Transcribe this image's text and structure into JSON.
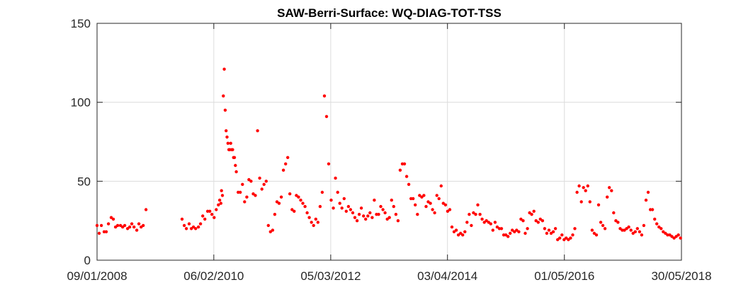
{
  "chart_data": {
    "type": "scatter",
    "title": "SAW-Berri-Surface: WQ-DIAG-TOT-TSS",
    "xlabel": "",
    "ylabel": "",
    "xlim": [
      0,
      3794
    ],
    "ylim": [
      0,
      150
    ],
    "grid": true,
    "marker_color": "#ff0000",
    "x_unit": "days since 09/01/2008",
    "x_ticks": [
      {
        "label": "09/01/2008",
        "value": 0
      },
      {
        "label": "06/02/2010",
        "value": 758
      },
      {
        "label": "05/03/2012",
        "value": 1517
      },
      {
        "label": "03/04/2014",
        "value": 2275
      },
      {
        "label": "01/05/2016",
        "value": 3034
      },
      {
        "label": "30/05/2018",
        "value": 3794
      }
    ],
    "y_ticks": [
      {
        "label": "0",
        "value": 0
      },
      {
        "label": "50",
        "value": 50
      },
      {
        "label": "100",
        "value": 100
      },
      {
        "label": "150",
        "value": 150
      }
    ],
    "series": [
      {
        "name": "WQ-DIAG-TOT-TSS",
        "points": [
          [
            0,
            22
          ],
          [
            14,
            17
          ],
          [
            28,
            22
          ],
          [
            46,
            18
          ],
          [
            60,
            18
          ],
          [
            74,
            23
          ],
          [
            92,
            27
          ],
          [
            106,
            26
          ],
          [
            120,
            21
          ],
          [
            134,
            22
          ],
          [
            152,
            22
          ],
          [
            166,
            21
          ],
          [
            180,
            22
          ],
          [
            198,
            20
          ],
          [
            212,
            21
          ],
          [
            226,
            23
          ],
          [
            240,
            21
          ],
          [
            258,
            19
          ],
          [
            272,
            23
          ],
          [
            286,
            21
          ],
          [
            300,
            22
          ],
          [
            318,
            32
          ],
          [
            552,
            26
          ],
          [
            566,
            22
          ],
          [
            580,
            20
          ],
          [
            598,
            23
          ],
          [
            612,
            20
          ],
          [
            626,
            21
          ],
          [
            640,
            20
          ],
          [
            658,
            21
          ],
          [
            672,
            23
          ],
          [
            686,
            28
          ],
          [
            700,
            26
          ],
          [
            718,
            31
          ],
          [
            732,
            31
          ],
          [
            746,
            29
          ],
          [
            760,
            27
          ],
          [
            774,
            32
          ],
          [
            788,
            35
          ],
          [
            796,
            38
          ],
          [
            804,
            36
          ],
          [
            808,
            44
          ],
          [
            814,
            41
          ],
          [
            820,
            104
          ],
          [
            826,
            121
          ],
          [
            832,
            95
          ],
          [
            838,
            82
          ],
          [
            844,
            78
          ],
          [
            850,
            74
          ],
          [
            856,
            70
          ],
          [
            862,
            70
          ],
          [
            868,
            74
          ],
          [
            874,
            70
          ],
          [
            880,
            70
          ],
          [
            886,
            65
          ],
          [
            892,
            65
          ],
          [
            898,
            60
          ],
          [
            904,
            56
          ],
          [
            916,
            43
          ],
          [
            930,
            43
          ],
          [
            944,
            48
          ],
          [
            958,
            37
          ],
          [
            972,
            40
          ],
          [
            986,
            51
          ],
          [
            1000,
            50
          ],
          [
            1014,
            42
          ],
          [
            1028,
            41
          ],
          [
            1042,
            82
          ],
          [
            1056,
            52
          ],
          [
            1070,
            45
          ],
          [
            1084,
            48
          ],
          [
            1098,
            50
          ],
          [
            1112,
            22
          ],
          [
            1126,
            18
          ],
          [
            1140,
            19
          ],
          [
            1154,
            29
          ],
          [
            1168,
            37
          ],
          [
            1182,
            36
          ],
          [
            1196,
            40
          ],
          [
            1210,
            57
          ],
          [
            1224,
            61
          ],
          [
            1238,
            65
          ],
          [
            1252,
            42
          ],
          [
            1266,
            32
          ],
          [
            1280,
            31
          ],
          [
            1294,
            41
          ],
          [
            1308,
            40
          ],
          [
            1322,
            38
          ],
          [
            1336,
            36
          ],
          [
            1350,
            34
          ],
          [
            1364,
            30
          ],
          [
            1378,
            27
          ],
          [
            1392,
            24
          ],
          [
            1406,
            22
          ],
          [
            1420,
            26
          ],
          [
            1434,
            24
          ],
          [
            1448,
            34
          ],
          [
            1462,
            43
          ],
          [
            1476,
            104
          ],
          [
            1490,
            91
          ],
          [
            1504,
            61
          ],
          [
            1520,
            38
          ],
          [
            1534,
            33
          ],
          [
            1548,
            52
          ],
          [
            1562,
            43
          ],
          [
            1576,
            36
          ],
          [
            1590,
            33
          ],
          [
            1604,
            39
          ],
          [
            1618,
            31
          ],
          [
            1632,
            34
          ],
          [
            1646,
            32
          ],
          [
            1660,
            30
          ],
          [
            1674,
            27
          ],
          [
            1688,
            25
          ],
          [
            1702,
            29
          ],
          [
            1716,
            33
          ],
          [
            1730,
            28
          ],
          [
            1744,
            26
          ],
          [
            1758,
            28
          ],
          [
            1772,
            30
          ],
          [
            1786,
            27
          ],
          [
            1800,
            38
          ],
          [
            1814,
            29
          ],
          [
            1828,
            29
          ],
          [
            1842,
            34
          ],
          [
            1856,
            32
          ],
          [
            1870,
            30
          ],
          [
            1884,
            26
          ],
          [
            1898,
            27
          ],
          [
            1912,
            38
          ],
          [
            1926,
            34
          ],
          [
            1940,
            29
          ],
          [
            1954,
            25
          ],
          [
            1968,
            57
          ],
          [
            1982,
            61
          ],
          [
            1996,
            61
          ],
          [
            2010,
            53
          ],
          [
            2024,
            48
          ],
          [
            2038,
            39
          ],
          [
            2052,
            39
          ],
          [
            2066,
            35
          ],
          [
            2080,
            29
          ],
          [
            2094,
            41
          ],
          [
            2108,
            40
          ],
          [
            2122,
            41
          ],
          [
            2136,
            34
          ],
          [
            2150,
            37
          ],
          [
            2164,
            36
          ],
          [
            2178,
            32
          ],
          [
            2192,
            30
          ],
          [
            2206,
            41
          ],
          [
            2220,
            39
          ],
          [
            2234,
            47
          ],
          [
            2248,
            36
          ],
          [
            2262,
            35
          ],
          [
            2276,
            31
          ],
          [
            2290,
            32
          ],
          [
            2304,
            21
          ],
          [
            2318,
            18
          ],
          [
            2332,
            19
          ],
          [
            2346,
            16
          ],
          [
            2360,
            17
          ],
          [
            2374,
            16
          ],
          [
            2388,
            18
          ],
          [
            2402,
            24
          ],
          [
            2416,
            29
          ],
          [
            2430,
            22
          ],
          [
            2444,
            30
          ],
          [
            2458,
            29
          ],
          [
            2472,
            35
          ],
          [
            2486,
            29
          ],
          [
            2500,
            26
          ],
          [
            2514,
            24
          ],
          [
            2528,
            25
          ],
          [
            2542,
            24
          ],
          [
            2556,
            23
          ],
          [
            2570,
            19
          ],
          [
            2584,
            24
          ],
          [
            2598,
            21
          ],
          [
            2612,
            20
          ],
          [
            2626,
            20
          ],
          [
            2640,
            16
          ],
          [
            2654,
            16
          ],
          [
            2668,
            15
          ],
          [
            2682,
            17
          ],
          [
            2696,
            19
          ],
          [
            2710,
            18
          ],
          [
            2724,
            19
          ],
          [
            2738,
            18
          ],
          [
            2752,
            26
          ],
          [
            2766,
            25
          ],
          [
            2780,
            17
          ],
          [
            2794,
            20
          ],
          [
            2808,
            30
          ],
          [
            2822,
            29
          ],
          [
            2836,
            31
          ],
          [
            2850,
            25
          ],
          [
            2864,
            24
          ],
          [
            2878,
            26
          ],
          [
            2892,
            25
          ],
          [
            2906,
            20
          ],
          [
            2920,
            17
          ],
          [
            2934,
            19
          ],
          [
            2948,
            17
          ],
          [
            2962,
            18
          ],
          [
            2976,
            20
          ],
          [
            2990,
            13
          ],
          [
            3004,
            14
          ],
          [
            3018,
            16
          ],
          [
            3032,
            13
          ],
          [
            3046,
            14
          ],
          [
            3060,
            13
          ],
          [
            3074,
            14
          ],
          [
            3088,
            16
          ],
          [
            3102,
            20
          ],
          [
            3116,
            43
          ],
          [
            3130,
            47
          ],
          [
            3144,
            37
          ],
          [
            3158,
            46
          ],
          [
            3172,
            44
          ],
          [
            3186,
            47
          ],
          [
            3200,
            37
          ],
          [
            3214,
            19
          ],
          [
            3228,
            17
          ],
          [
            3242,
            16
          ],
          [
            3256,
            35
          ],
          [
            3270,
            24
          ],
          [
            3284,
            22
          ],
          [
            3298,
            20
          ],
          [
            3312,
            40
          ],
          [
            3326,
            46
          ],
          [
            3340,
            44
          ],
          [
            3354,
            30
          ],
          [
            3368,
            25
          ],
          [
            3382,
            24
          ],
          [
            3396,
            20
          ],
          [
            3410,
            19
          ],
          [
            3424,
            19
          ],
          [
            3438,
            20
          ],
          [
            3452,
            21
          ],
          [
            3466,
            19
          ],
          [
            3480,
            17
          ],
          [
            3494,
            18
          ],
          [
            3508,
            20
          ],
          [
            3522,
            18
          ],
          [
            3536,
            16
          ],
          [
            3550,
            22
          ],
          [
            3564,
            38
          ],
          [
            3578,
            43
          ],
          [
            3592,
            32
          ],
          [
            3606,
            32
          ],
          [
            3620,
            26
          ],
          [
            3634,
            23
          ],
          [
            3648,
            21
          ],
          [
            3662,
            20
          ],
          [
            3676,
            18
          ],
          [
            3690,
            17
          ],
          [
            3704,
            16
          ],
          [
            3718,
            16
          ],
          [
            3732,
            15
          ],
          [
            3746,
            14
          ],
          [
            3760,
            15
          ],
          [
            3774,
            16
          ],
          [
            3788,
            14
          ]
        ]
      }
    ]
  }
}
